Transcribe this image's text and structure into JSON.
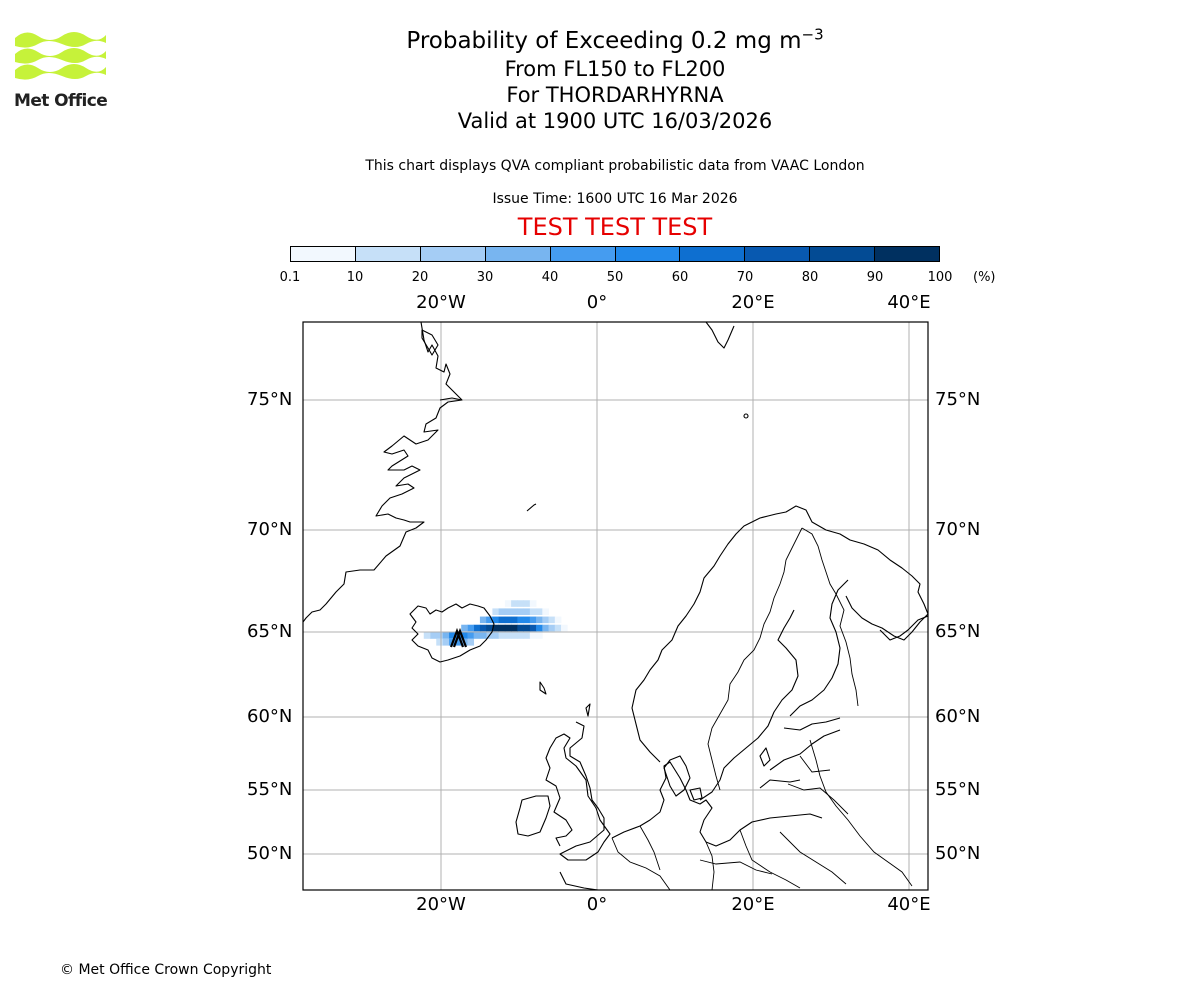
{
  "header": {
    "title_prefix": "Probability of Exceeding 0.2 mg m",
    "title_exponent": "−3",
    "level_range": "From FL150 to FL200",
    "volcano": "For THORDARHYRNA",
    "valid_time": "Valid at 1900 UTC 16/03/2026",
    "subtitle": "This chart displays QVA compliant probabilistic data from VAAC London",
    "issue_time": "Issue Time: 1600 UTC 16 Mar 2026",
    "test_banner": "TEST TEST TEST"
  },
  "logo": {
    "text": "Met Office",
    "color": "#c6f23a"
  },
  "colorbar": {
    "ticks": [
      "0.1",
      "10",
      "20",
      "30",
      "40",
      "50",
      "60",
      "70",
      "80",
      "90",
      "100"
    ],
    "unit": "(%)",
    "colors": [
      "#f2f8fe",
      "#c6e0f8",
      "#a5cdf5",
      "#78b5f0",
      "#459cf0",
      "#2289ea",
      "#0e6fd0",
      "#0859b0",
      "#034b94",
      "#003060"
    ]
  },
  "map": {
    "lon_labels": [
      "20°W",
      "0°",
      "20°E",
      "40°E"
    ],
    "lat_labels": [
      "75°N",
      "70°N",
      "65°N",
      "60°N",
      "55°N",
      "50°N"
    ],
    "plume_cells": [
      {
        "lon": -18.6,
        "lat": 64.8,
        "p": 5
      },
      {
        "lon": -17.8,
        "lat": 64.8,
        "p": 5
      },
      {
        "lon": -17.0,
        "lat": 64.8,
        "p": 5
      },
      {
        "lon": -16.2,
        "lat": 64.8,
        "p": 4
      },
      {
        "lon": -15.4,
        "lat": 64.8,
        "p": 3
      },
      {
        "lon": -19.4,
        "lat": 64.8,
        "p": 3
      },
      {
        "lon": -20.2,
        "lat": 64.8,
        "p": 2
      },
      {
        "lon": -21.0,
        "lat": 64.8,
        "p": 2
      },
      {
        "lon": -21.8,
        "lat": 64.8,
        "p": 1
      },
      {
        "lon": -18.6,
        "lat": 64.4,
        "p": 4
      },
      {
        "lon": -17.8,
        "lat": 64.4,
        "p": 4
      },
      {
        "lon": -19.4,
        "lat": 64.4,
        "p": 2
      },
      {
        "lon": -17.0,
        "lat": 64.4,
        "p": 3
      },
      {
        "lon": -16.2,
        "lat": 64.4,
        "p": 2
      },
      {
        "lon": -20.2,
        "lat": 64.4,
        "p": 1
      },
      {
        "lon": -15.4,
        "lat": 65.2,
        "p": 6
      },
      {
        "lon": -14.6,
        "lat": 65.2,
        "p": 7
      },
      {
        "lon": -13.8,
        "lat": 65.2,
        "p": 8
      },
      {
        "lon": -13.0,
        "lat": 65.2,
        "p": 9
      },
      {
        "lon": -12.2,
        "lat": 65.2,
        "p": 9
      },
      {
        "lon": -11.4,
        "lat": 65.2,
        "p": 9
      },
      {
        "lon": -10.6,
        "lat": 65.2,
        "p": 9
      },
      {
        "lon": -9.8,
        "lat": 65.2,
        "p": 8
      },
      {
        "lon": -9.0,
        "lat": 65.2,
        "p": 8
      },
      {
        "lon": -8.2,
        "lat": 65.2,
        "p": 7
      },
      {
        "lon": -7.4,
        "lat": 65.2,
        "p": 5
      },
      {
        "lon": -6.6,
        "lat": 65.2,
        "p": 3
      },
      {
        "lon": -5.8,
        "lat": 65.2,
        "p": 2
      },
      {
        "lon": -5.0,
        "lat": 65.2,
        "p": 1
      },
      {
        "lon": -4.2,
        "lat": 65.2,
        "p": 0
      },
      {
        "lon": -16.2,
        "lat": 65.2,
        "p": 4
      },
      {
        "lon": -17.0,
        "lat": 65.2,
        "p": 3
      },
      {
        "lon": -14.6,
        "lat": 65.6,
        "p": 3
      },
      {
        "lon": -13.8,
        "lat": 65.6,
        "p": 4
      },
      {
        "lon": -13.0,
        "lat": 65.6,
        "p": 5
      },
      {
        "lon": -12.2,
        "lat": 65.6,
        "p": 6
      },
      {
        "lon": -11.4,
        "lat": 65.6,
        "p": 6
      },
      {
        "lon": -10.6,
        "lat": 65.6,
        "p": 6
      },
      {
        "lon": -9.8,
        "lat": 65.6,
        "p": 5
      },
      {
        "lon": -9.0,
        "lat": 65.6,
        "p": 5
      },
      {
        "lon": -8.2,
        "lat": 65.6,
        "p": 4
      },
      {
        "lon": -7.4,
        "lat": 65.6,
        "p": 3
      },
      {
        "lon": -6.6,
        "lat": 65.6,
        "p": 2
      },
      {
        "lon": -5.8,
        "lat": 65.6,
        "p": 1
      },
      {
        "lon": -5.0,
        "lat": 65.6,
        "p": 0
      },
      {
        "lon": -13.0,
        "lat": 66.0,
        "p": 1
      },
      {
        "lon": -12.2,
        "lat": 66.0,
        "p": 2
      },
      {
        "lon": -11.4,
        "lat": 66.0,
        "p": 2
      },
      {
        "lon": -10.6,
        "lat": 66.0,
        "p": 2
      },
      {
        "lon": -9.8,
        "lat": 66.0,
        "p": 2
      },
      {
        "lon": -9.0,
        "lat": 66.0,
        "p": 2
      },
      {
        "lon": -8.2,
        "lat": 66.0,
        "p": 1
      },
      {
        "lon": -7.4,
        "lat": 66.0,
        "p": 1
      },
      {
        "lon": -6.6,
        "lat": 66.0,
        "p": 0
      },
      {
        "lon": -11.4,
        "lat": 66.4,
        "p": 0
      },
      {
        "lon": -10.6,
        "lat": 66.4,
        "p": 1
      },
      {
        "lon": -9.8,
        "lat": 66.4,
        "p": 1
      },
      {
        "lon": -9.0,
        "lat": 66.4,
        "p": 1
      },
      {
        "lon": -8.2,
        "lat": 66.4,
        "p": 0
      },
      {
        "lon": -13.8,
        "lat": 64.8,
        "p": 2
      },
      {
        "lon": -13.0,
        "lat": 64.8,
        "p": 2
      },
      {
        "lon": -12.2,
        "lat": 64.8,
        "p": 1
      },
      {
        "lon": -11.4,
        "lat": 64.8,
        "p": 1
      },
      {
        "lon": -10.6,
        "lat": 64.8,
        "p": 1
      },
      {
        "lon": -9.8,
        "lat": 64.8,
        "p": 1
      },
      {
        "lon": -9.0,
        "lat": 64.8,
        "p": 1
      },
      {
        "lon": -8.2,
        "lat": 64.8,
        "p": 0
      },
      {
        "lon": -7.4,
        "lat": 64.8,
        "p": 0
      },
      {
        "lon": -14.6,
        "lat": 64.8,
        "p": 3
      }
    ]
  },
  "footer": {
    "copyright": "© Met Office Crown Copyright"
  }
}
